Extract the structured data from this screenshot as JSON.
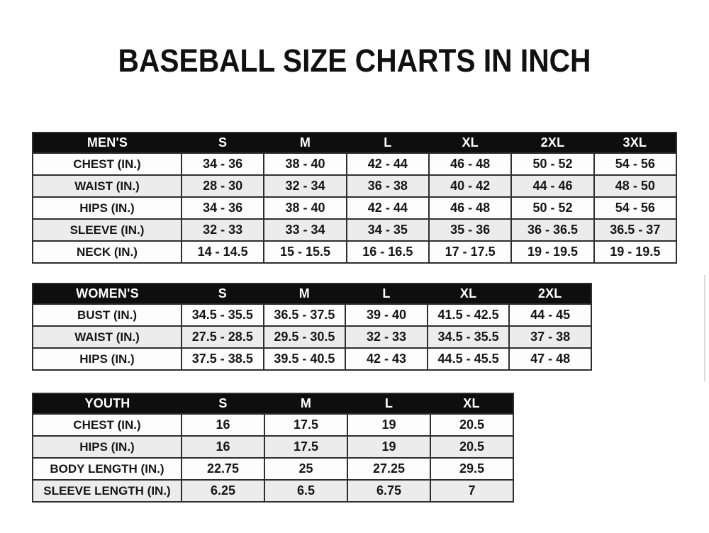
{
  "title": "BASEBALL SIZE CHARTS IN INCH",
  "colors": {
    "header_bg": "#0e0e0e",
    "header_fg": "#ffffff",
    "row_alt": "#ececec",
    "border": "#2e2e2e"
  },
  "tables": [
    {
      "id": "mens",
      "header": [
        "MEN'S",
        "S",
        "M",
        "L",
        "XL",
        "2XL",
        "3XL"
      ],
      "rows": [
        [
          "CHEST (IN.)",
          "34 - 36",
          "38 - 40",
          "42 - 44",
          "46 - 48",
          "50 - 52",
          "54 - 56"
        ],
        [
          "WAIST (IN.)",
          "28 - 30",
          "32 - 34",
          "36 - 38",
          "40 - 42",
          "44 - 46",
          "48 - 50"
        ],
        [
          "HIPS (IN.)",
          "34 - 36",
          "38 - 40",
          "42 - 44",
          "46 - 48",
          "50 - 52",
          "54 - 56"
        ],
        [
          "SLEEVE (IN.)",
          "32 - 33",
          "33 - 34",
          "34 - 35",
          "35 - 36",
          "36 - 36.5",
          "36.5 - 37"
        ],
        [
          "NECK (IN.)",
          "14 - 14.5",
          "15 - 15.5",
          "16 - 16.5",
          "17 - 17.5",
          "19 - 19.5",
          "19 - 19.5"
        ]
      ]
    },
    {
      "id": "womens",
      "header": [
        "WOMEN'S",
        "S",
        "M",
        "L",
        "XL",
        "2XL"
      ],
      "rows": [
        [
          "BUST (IN.)",
          "34.5 - 35.5",
          "36.5 - 37.5",
          "39 - 40",
          "41.5 - 42.5",
          "44 - 45"
        ],
        [
          "WAIST (IN.)",
          "27.5 - 28.5",
          "29.5 - 30.5",
          "32 - 33",
          "34.5 - 35.5",
          "37 - 38"
        ],
        [
          "HIPS (IN.)",
          "37.5 - 38.5",
          "39.5 - 40.5",
          "42 - 43",
          "44.5 - 45.5",
          "47 - 48"
        ]
      ]
    },
    {
      "id": "youth",
      "header": [
        "YOUTH",
        "S",
        "M",
        "L",
        "XL"
      ],
      "rows": [
        [
          "CHEST (IN.)",
          "16",
          "17.5",
          "19",
          "20.5"
        ],
        [
          "HIPS (IN.)",
          "16",
          "17.5",
          "19",
          "20.5"
        ],
        [
          "BODY LENGTH (IN.)",
          "22.75",
          "25",
          "27.25",
          "29.5"
        ],
        [
          "SLEEVE LENGTH (IN.)",
          "6.25",
          "6.5",
          "6.75",
          "7"
        ]
      ]
    }
  ]
}
